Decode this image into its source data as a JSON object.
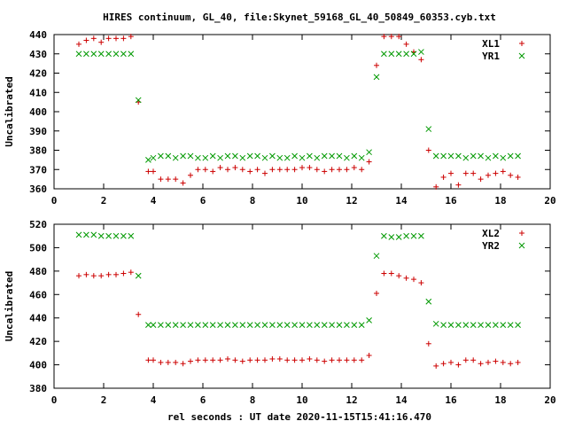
{
  "chart_data": {
    "title": "HIRES continuum, GL_40, file:Skynet_59168_GL_40_50849_60353.cyb.txt",
    "xlabel": "rel seconds : UT date 2020-11-15T15:41:16.470",
    "colors": {
      "series1": "#cc0000",
      "series2": "#009900"
    },
    "panels": [
      {
        "type": "scatter",
        "ylabel": "Uncalibrated",
        "xlim": [
          0,
          20
        ],
        "ylim": [
          360,
          440
        ],
        "xticks": [
          "0",
          "2",
          "4",
          "6",
          "8",
          "10",
          "12",
          "14",
          "16",
          "18",
          "20"
        ],
        "yticks": [
          "360",
          "370",
          "380",
          "390",
          "400",
          "410",
          "420",
          "430",
          "440"
        ],
        "legend_position": "top-right",
        "series": [
          {
            "name": "XL1",
            "marker": "plus",
            "x": [
              1.0,
              1.3,
              1.6,
              1.9,
              2.2,
              2.5,
              2.8,
              3.1,
              3.4,
              3.8,
              4.0,
              4.3,
              4.6,
              4.9,
              5.2,
              5.5,
              5.8,
              6.1,
              6.4,
              6.7,
              7.0,
              7.3,
              7.6,
              7.9,
              8.2,
              8.5,
              8.8,
              9.1,
              9.4,
              9.7,
              10.0,
              10.3,
              10.6,
              10.9,
              11.2,
              11.5,
              11.8,
              12.1,
              12.4,
              12.7,
              13.0,
              13.3,
              13.6,
              13.9,
              14.2,
              14.5,
              14.8,
              15.1,
              15.4,
              15.7,
              16.0,
              16.3,
              16.6,
              16.9,
              17.2,
              17.5,
              17.8,
              18.1,
              18.4,
              18.7
            ],
            "values": [
              435,
              437,
              438,
              436,
              438,
              438,
              438,
              439,
              405,
              369,
              369,
              365,
              365,
              365,
              363,
              367,
              370,
              370,
              369,
              371,
              370,
              371,
              370,
              369,
              370,
              368,
              370,
              370,
              370,
              370,
              371,
              371,
              370,
              369,
              370,
              370,
              370,
              371,
              370,
              374,
              424,
              439,
              439,
              439,
              435,
              431,
              427,
              380,
              361,
              366,
              368,
              362,
              368,
              368,
              365,
              367,
              368,
              369,
              367,
              366
            ]
          },
          {
            "name": "YR1",
            "marker": "cross",
            "x": [
              1.0,
              1.3,
              1.6,
              1.9,
              2.2,
              2.5,
              2.8,
              3.1,
              3.4,
              3.8,
              4.0,
              4.3,
              4.6,
              4.9,
              5.2,
              5.5,
              5.8,
              6.1,
              6.4,
              6.7,
              7.0,
              7.3,
              7.6,
              7.9,
              8.2,
              8.5,
              8.8,
              9.1,
              9.4,
              9.7,
              10.0,
              10.3,
              10.6,
              10.9,
              11.2,
              11.5,
              11.8,
              12.1,
              12.4,
              12.7,
              13.0,
              13.3,
              13.6,
              13.9,
              14.2,
              14.5,
              14.8,
              15.1,
              15.4,
              15.7,
              16.0,
              16.3,
              16.6,
              16.9,
              17.2,
              17.5,
              17.8,
              18.1,
              18.4,
              18.7
            ],
            "values": [
              430,
              430,
              430,
              430,
              430,
              430,
              430,
              430,
              406,
              375,
              376,
              377,
              377,
              376,
              377,
              377,
              376,
              376,
              377,
              376,
              377,
              377,
              376,
              377,
              377,
              376,
              377,
              376,
              376,
              377,
              376,
              377,
              376,
              377,
              377,
              377,
              376,
              377,
              376,
              379,
              418,
              430,
              430,
              430,
              430,
              430,
              431,
              391,
              377,
              377,
              377,
              377,
              376,
              377,
              377,
              376,
              377,
              376,
              377,
              377
            ]
          }
        ]
      },
      {
        "type": "scatter",
        "ylabel": "Uncalibrated",
        "xlim": [
          0,
          20
        ],
        "ylim": [
          380,
          520
        ],
        "xticks": [
          "0",
          "2",
          "4",
          "6",
          "8",
          "10",
          "12",
          "14",
          "16",
          "18",
          "20"
        ],
        "yticks": [
          "380",
          "400",
          "420",
          "440",
          "460",
          "480",
          "500",
          "520"
        ],
        "legend_position": "top-right",
        "series": [
          {
            "name": "XL2",
            "marker": "plus",
            "x": [
              1.0,
              1.3,
              1.6,
              1.9,
              2.2,
              2.5,
              2.8,
              3.1,
              3.4,
              3.8,
              4.0,
              4.3,
              4.6,
              4.9,
              5.2,
              5.5,
              5.8,
              6.1,
              6.4,
              6.7,
              7.0,
              7.3,
              7.6,
              7.9,
              8.2,
              8.5,
              8.8,
              9.1,
              9.4,
              9.7,
              10.0,
              10.3,
              10.6,
              10.9,
              11.2,
              11.5,
              11.8,
              12.1,
              12.4,
              12.7,
              13.0,
              13.3,
              13.6,
              13.9,
              14.2,
              14.5,
              14.8,
              15.1,
              15.4,
              15.7,
              16.0,
              16.3,
              16.6,
              16.9,
              17.2,
              17.5,
              17.8,
              18.1,
              18.4,
              18.7
            ],
            "values": [
              476,
              477,
              476,
              476,
              477,
              477,
              478,
              479,
              443,
              404,
              404,
              402,
              402,
              402,
              401,
              403,
              404,
              404,
              404,
              404,
              405,
              404,
              403,
              404,
              404,
              404,
              405,
              405,
              404,
              404,
              404,
              405,
              404,
              403,
              404,
              404,
              404,
              404,
              404,
              408,
              461,
              478,
              478,
              476,
              474,
              473,
              470,
              418,
              399,
              401,
              402,
              400,
              404,
              404,
              401,
              402,
              403,
              402,
              401,
              402
            ]
          },
          {
            "name": "YR2",
            "marker": "cross",
            "x": [
              1.0,
              1.3,
              1.6,
              1.9,
              2.2,
              2.5,
              2.8,
              3.1,
              3.4,
              3.8,
              4.0,
              4.3,
              4.6,
              4.9,
              5.2,
              5.5,
              5.8,
              6.1,
              6.4,
              6.7,
              7.0,
              7.3,
              7.6,
              7.9,
              8.2,
              8.5,
              8.8,
              9.1,
              9.4,
              9.7,
              10.0,
              10.3,
              10.6,
              10.9,
              11.2,
              11.5,
              11.8,
              12.1,
              12.4,
              12.7,
              13.0,
              13.3,
              13.6,
              13.9,
              14.2,
              14.5,
              14.8,
              15.1,
              15.4,
              15.7,
              16.0,
              16.3,
              16.6,
              16.9,
              17.2,
              17.5,
              17.8,
              18.1,
              18.4,
              18.7
            ],
            "values": [
              511,
              511,
              511,
              510,
              510,
              510,
              510,
              510,
              476,
              434,
              434,
              434,
              434,
              434,
              434,
              434,
              434,
              434,
              434,
              434,
              434,
              434,
              434,
              434,
              434,
              434,
              434,
              434,
              434,
              434,
              434,
              434,
              434,
              434,
              434,
              434,
              434,
              434,
              434,
              438,
              493,
              510,
              509,
              509,
              510,
              510,
              510,
              454,
              435,
              434,
              434,
              434,
              434,
              434,
              434,
              434,
              434,
              434,
              434,
              434
            ]
          }
        ]
      }
    ]
  }
}
